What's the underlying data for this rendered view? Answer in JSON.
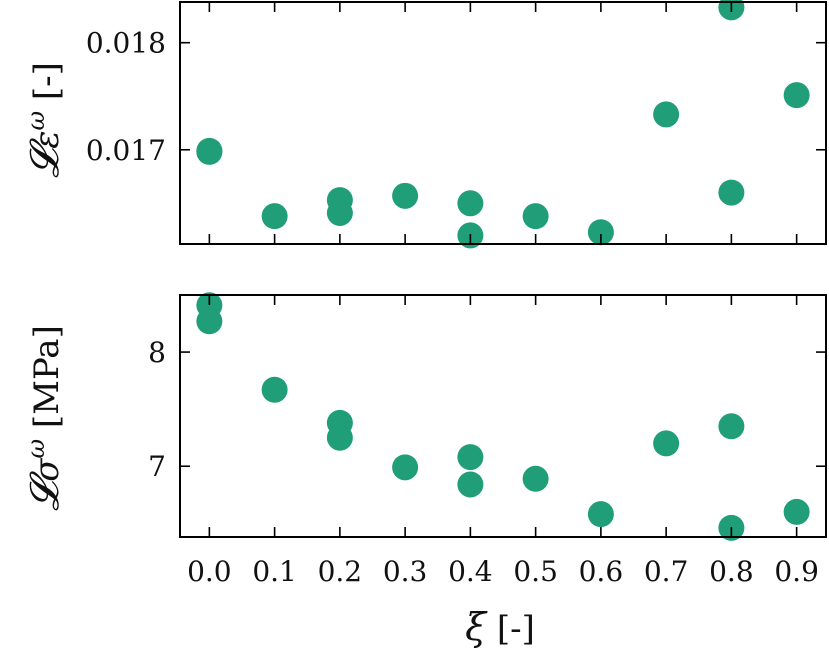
{
  "chart_data": [
    {
      "type": "scatter",
      "ylabel": "𝓛ε^ω [-]",
      "ylim": [
        0.01612,
        0.01838
      ],
      "yticks": [
        "0.017",
        "0.018"
      ],
      "ytick_values": [
        0.017,
        0.018
      ],
      "xlim": [
        -0.045,
        0.945
      ],
      "grid": false,
      "marker_color": "#1f9e77",
      "series": [
        {
          "x": [
            0.0,
            0.0,
            0.1,
            0.2,
            0.2,
            0.3,
            0.4,
            0.4,
            0.5,
            0.6,
            0.7,
            0.8,
            0.8,
            0.9
          ],
          "y": [
            0.01699,
            0.01698,
            0.01638,
            0.01653,
            0.01641,
            0.01657,
            0.0165,
            0.0162,
            0.01638,
            0.01623,
            0.01733,
            0.01833,
            0.0166,
            0.01751
          ]
        }
      ]
    },
    {
      "type": "scatter",
      "ylabel": "𝓛σ^ω [MPa]",
      "ylim": [
        6.38,
        8.5
      ],
      "yticks": [
        "7",
        "8"
      ],
      "ytick_values": [
        7,
        8
      ],
      "xlim": [
        -0.045,
        0.945
      ],
      "xlabel": "ξ [-]",
      "xticks": [
        "0.0",
        "0.1",
        "0.2",
        "0.3",
        "0.4",
        "0.5",
        "0.6",
        "0.7",
        "0.8",
        "0.9"
      ],
      "xtick_values": [
        0.0,
        0.1,
        0.2,
        0.3,
        0.4,
        0.5,
        0.6,
        0.7,
        0.8,
        0.9
      ],
      "grid": false,
      "marker_color": "#1f9e77",
      "series": [
        {
          "x": [
            0.0,
            0.0,
            0.1,
            0.2,
            0.2,
            0.3,
            0.4,
            0.4,
            0.5,
            0.6,
            0.7,
            0.8,
            0.8,
            0.9
          ],
          "y": [
            8.41,
            8.27,
            7.67,
            7.38,
            7.25,
            6.99,
            7.08,
            6.84,
            6.89,
            6.58,
            7.2,
            7.35,
            6.46,
            6.6
          ]
        }
      ]
    }
  ]
}
